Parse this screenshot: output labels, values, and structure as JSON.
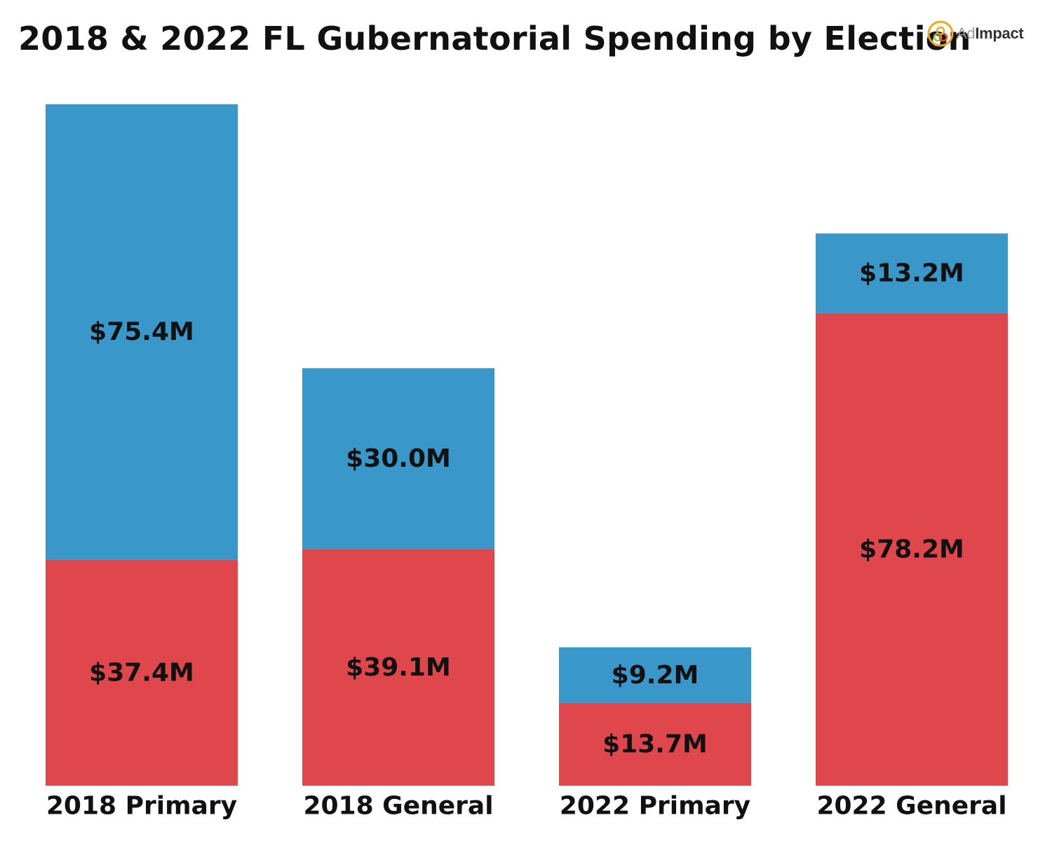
{
  "title": "2018 & 2022 FL Gubernatorial Spending by Election",
  "logo": {
    "text_light": "Ad",
    "text_bold": "Impact",
    "icon": "adimpact-logo-icon"
  },
  "chart_data": {
    "type": "bar",
    "stacked": true,
    "title": "2018 & 2022 FL Gubernatorial Spending by Election",
    "xlabel": "",
    "ylabel": "",
    "grid": false,
    "legend": "none",
    "ylim": [
      0,
      115
    ],
    "categories": [
      "2018 Primary",
      "2018 General",
      "2022 Primary",
      "2022 General"
    ],
    "series": [
      {
        "color": "#e0474c",
        "values": [
          37.4,
          39.1,
          13.7,
          78.2
        ],
        "labels": [
          "$37.4M",
          "$39.1M",
          "$13.7M",
          "$78.2M"
        ]
      },
      {
        "color": "#3a97c9",
        "values": [
          75.4,
          30.0,
          9.2,
          13.2
        ],
        "labels": [
          "$75.4M",
          "$30.0M",
          "$9.2M",
          "$13.2M"
        ]
      }
    ]
  }
}
